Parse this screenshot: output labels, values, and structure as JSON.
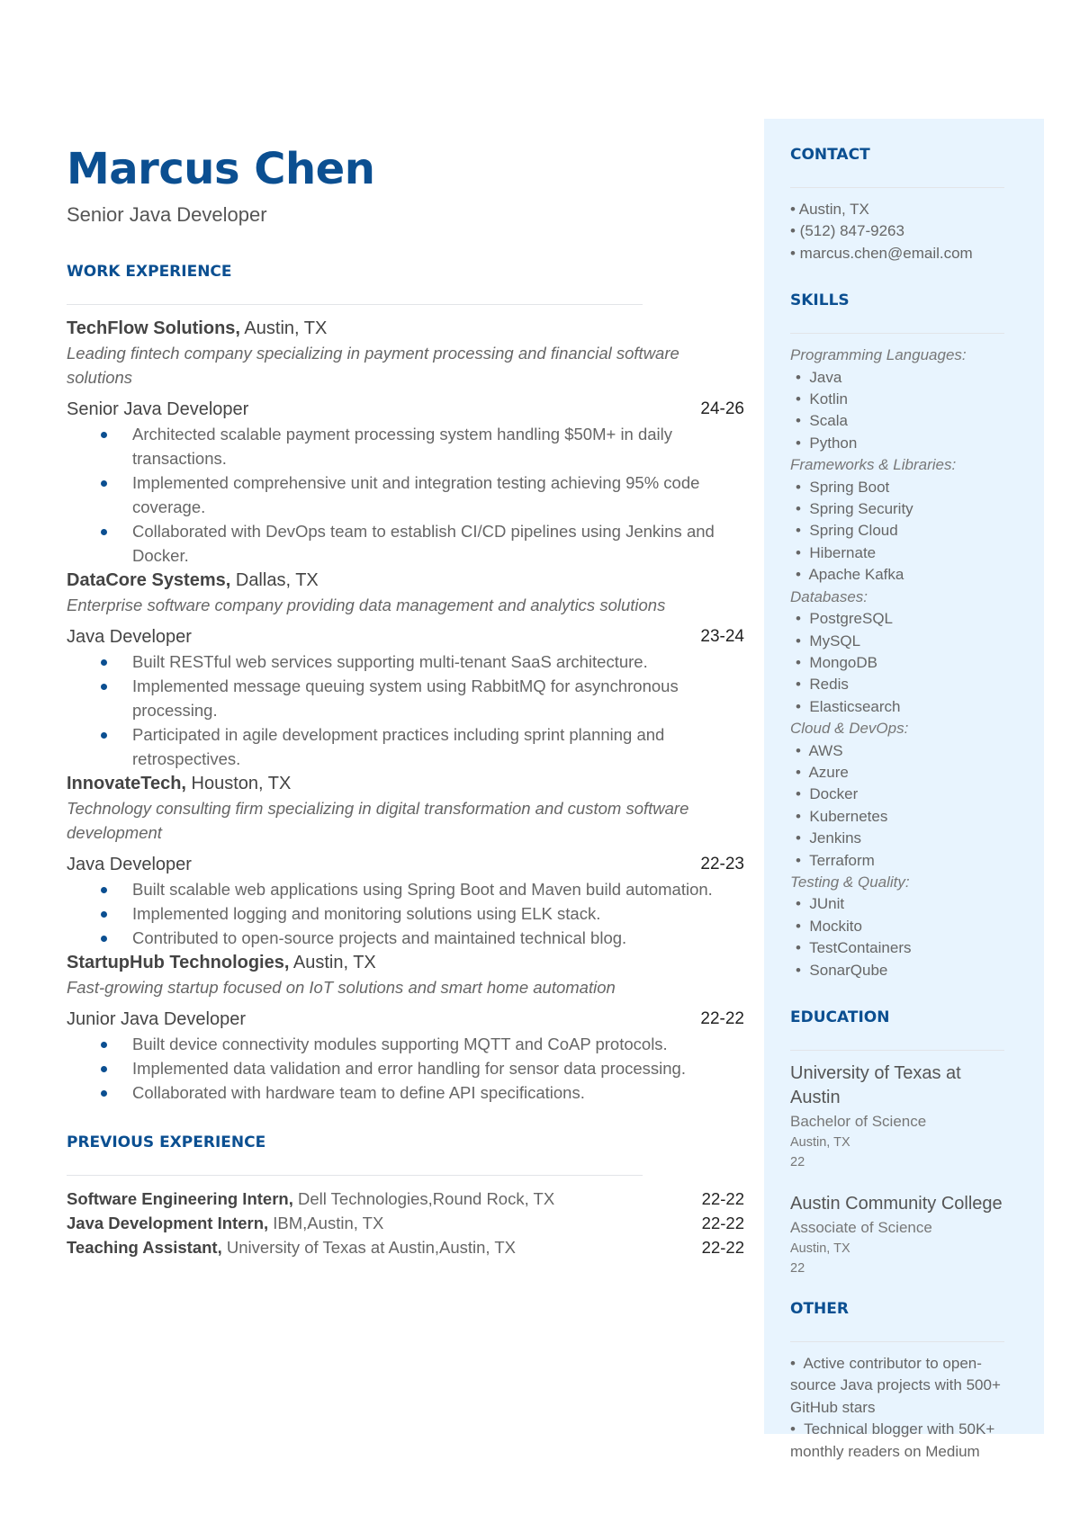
{
  "header": {
    "name": "Marcus Chen",
    "title": "Senior Java Developer"
  },
  "work": {
    "heading": "WORK EXPERIENCE",
    "jobs": [
      {
        "company": "TechFlow Solutions,",
        "location": " Austin, TX",
        "desc": "Leading fintech company specializing in payment processing and financial software solutions",
        "role": "Senior Java Developer",
        "date": "24-26",
        "bullets": [
          "Architected scalable payment processing system handling $50M+ in daily transactions.",
          "Implemented comprehensive unit and integration testing achieving 95% code coverage.",
          "Collaborated with DevOps team to establish CI/CD pipelines using Jenkins and Docker."
        ]
      },
      {
        "company": "DataCore Systems,",
        "location": " Dallas, TX",
        "desc": "Enterprise software company providing data management and analytics solutions",
        "role": "Java Developer",
        "date": "23-24",
        "bullets": [
          "Built RESTful web services supporting multi-tenant SaaS architecture.",
          "Implemented message queuing system using RabbitMQ for asynchronous processing.",
          "Participated in agile development practices including sprint planning and retrospectives."
        ]
      },
      {
        "company": "InnovateTech,",
        "location": " Houston, TX",
        "desc": "Technology consulting firm specializing in digital transformation and custom software development",
        "role": "Java Developer",
        "date": "22-23",
        "bullets": [
          "Built scalable web applications using Spring Boot and Maven build automation.",
          "Implemented logging and monitoring solutions using ELK stack.",
          "Contributed to open-source projects and maintained technical blog."
        ]
      },
      {
        "company": "StartupHub Technologies,",
        "location": " Austin, TX",
        "desc": "Fast-growing startup focused on IoT solutions and smart home automation",
        "role": "Junior Java Developer",
        "date": "22-22",
        "bullets": [
          "Built device connectivity modules supporting MQTT and CoAP protocols.",
          "Implemented data validation and error handling for sensor data processing.",
          "Collaborated with hardware team to define API specifications."
        ]
      }
    ]
  },
  "previous": {
    "heading": "PREVIOUS EXPERIENCE",
    "items": [
      {
        "role": "Software Engineering Intern,",
        "org": " Dell Technologies,Round Rock, TX",
        "date": "22-22"
      },
      {
        "role": "Java Development Intern,",
        "org": " IBM,Austin, TX",
        "date": "22-22"
      },
      {
        "role": "Teaching Assistant,",
        "org": " University of Texas at Austin,Austin, TX",
        "date": "22-22"
      }
    ]
  },
  "contact": {
    "heading": "CONTACT",
    "items": [
      "• Austin, TX",
      "• (512) 847-9263",
      "• marcus.chen@email.com"
    ]
  },
  "skills": {
    "heading": "SKILLS",
    "groups": [
      {
        "name": "Programming Languages:",
        "items": [
          "Java",
          "Kotlin",
          "Scala",
          "Python"
        ]
      },
      {
        "name": "Frameworks & Libraries:",
        "items": [
          "Spring Boot",
          "Spring Security",
          "Spring Cloud",
          "Hibernate",
          "Apache Kafka"
        ]
      },
      {
        "name": "Databases:",
        "items": [
          "PostgreSQL",
          "MySQL",
          "MongoDB",
          "Redis",
          "Elasticsearch"
        ]
      },
      {
        "name": "Cloud & DevOps:",
        "items": [
          "AWS",
          "Azure",
          "Docker",
          "Kubernetes",
          "Jenkins",
          "Terraform"
        ]
      },
      {
        "name": "Testing & Quality:",
        "items": [
          "JUnit",
          "Mockito",
          "TestContainers",
          "SonarQube"
        ]
      }
    ]
  },
  "education": {
    "heading": "EDUCATION",
    "items": [
      {
        "school": "University of Texas at Austin",
        "degree": "Bachelor of Science",
        "location": "Austin, TX",
        "year": "22"
      },
      {
        "school": "Austin Community College",
        "degree": "Associate of Science",
        "location": "Austin, TX",
        "year": "22"
      }
    ]
  },
  "other": {
    "heading": "OTHER",
    "items": [
      "•  Active contributor to open-source Java projects with 500+ GitHub stars",
      "•  Technical blogger with 50K+ monthly readers on Medium"
    ]
  },
  "colors": {
    "accent": "#0b4f91",
    "sidebar_bg": "#e8f4fe"
  }
}
